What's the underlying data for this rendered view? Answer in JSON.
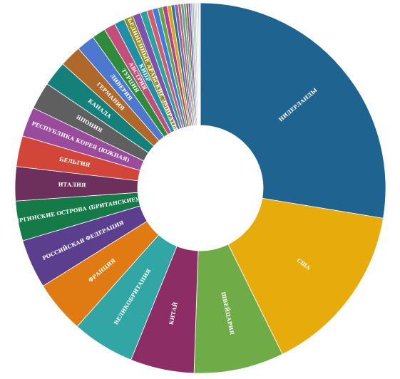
{
  "chart_data": {
    "type": "pie",
    "donut": true,
    "title": "",
    "slices": [
      {
        "label": "НИДЕРЛАНДЫ",
        "value": 27.8,
        "color": "#1f6390"
      },
      {
        "label": "США",
        "value": 15.2,
        "color": "#e8ab0c"
      },
      {
        "label": "ШВЕЙЦАРИЯ",
        "value": 7.9,
        "color": "#6fac47"
      },
      {
        "label": "КИТАЙ",
        "value": 5.6,
        "color": "#8c2d65"
      },
      {
        "label": "ВЕЛИКОБРИТАНИЯ",
        "value": 5.5,
        "color": "#32a6a5"
      },
      {
        "label": "ФРАНЦИЯ",
        "value": 4.6,
        "color": "#e07a12"
      },
      {
        "label": "РОССИЙСКАЯ ФЕДЕРАЦИЯ",
        "value": 4.3,
        "color": "#5b3f8e"
      },
      {
        "label": "ВИРГИНСКИЕ ОСТРОВА (БРИТАНСКИЕ)",
        "value": 3.5,
        "color": "#157a48"
      },
      {
        "label": "ИТАЛИЯ",
        "value": 3.0,
        "color": "#6d2f5b"
      },
      {
        "label": "БЕЛЬГИЯ",
        "value": 2.7,
        "color": "#d2463a"
      },
      {
        "label": "РЕСПУБЛИКА КОРЕЯ (ЮЖНАЯ)",
        "value": 2.6,
        "color": "#9b4b9c"
      },
      {
        "label": "ЯПОНИЯ",
        "value": 2.4,
        "color": "#5f5f5f"
      },
      {
        "label": "КАНАДА",
        "value": 2.2,
        "color": "#15807a"
      },
      {
        "label": "ГЕРМАНИЯ",
        "value": 1.9,
        "color": "#b0682a"
      },
      {
        "label": "ЛИВЕРИЯ",
        "value": 1.6,
        "color": "#4c78d0"
      },
      {
        "label": "ТУРЦИЯ",
        "value": 1.2,
        "color": "#2e8b3c"
      },
      {
        "label": "АВСТРИЯ",
        "value": 1.0,
        "color": "#c44e7a"
      },
      {
        "label": "КИПР",
        "value": 0.9,
        "color": "#1d8fa6"
      },
      {
        "label": "ОБЪЕДИНЕННЫЕ АРАБСКИЕ ЭМИРАТЫ",
        "value": 0.8,
        "color": "#9a8a1a"
      },
      {
        "label": "",
        "value": 0.7,
        "color": "#7b52ae"
      },
      {
        "label": "",
        "value": 0.6,
        "color": "#2aa39b"
      },
      {
        "label": "",
        "value": 0.5,
        "color": "#d45a6c"
      },
      {
        "label": "",
        "value": 0.5,
        "color": "#3b7dd8"
      },
      {
        "label": "",
        "value": 0.4,
        "color": "#5ea845"
      },
      {
        "label": "",
        "value": 0.4,
        "color": "#b8418f"
      },
      {
        "label": "",
        "value": 0.35,
        "color": "#e0a020"
      },
      {
        "label": "",
        "value": 0.3,
        "color": "#28788c"
      },
      {
        "label": "",
        "value": 0.3,
        "color": "#8d5fbd"
      },
      {
        "label": "",
        "value": 0.25,
        "color": "#c96a3a"
      },
      {
        "label": "",
        "value": 0.25,
        "color": "#4aa0c8"
      },
      {
        "label": "",
        "value": 0.2,
        "color": "#7a9a3a"
      },
      {
        "label": "",
        "value": 0.2,
        "color": "#a04a6a"
      },
      {
        "label": "",
        "value": 0.2,
        "color": "#5a6ab0"
      },
      {
        "label": "",
        "value": 0.15,
        "color": "#9ab0c0"
      },
      {
        "label": "",
        "value": 0.15,
        "color": "#c0b090"
      },
      {
        "label": "",
        "value": 0.15,
        "color": "#b0c4d4"
      },
      {
        "label": "",
        "value": 0.1,
        "color": "#c8c8c8"
      },
      {
        "label": "",
        "value": 0.1,
        "color": "#d0d8e0"
      },
      {
        "label": "",
        "value": 0.1,
        "color": "#bcc6cf"
      },
      {
        "label": "",
        "value": 0.1,
        "color": "#dcdcdc"
      }
    ]
  }
}
